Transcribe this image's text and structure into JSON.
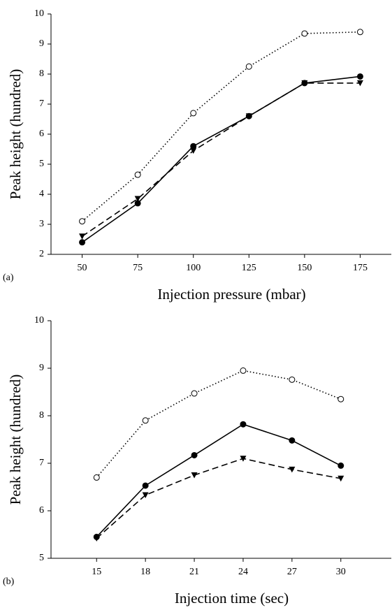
{
  "chart_data": [
    {
      "type": "line",
      "panel_label": "(a)",
      "xlabel": "Injection pressure (mbar)",
      "ylabel": "Peak height (hundred)",
      "x": [
        50,
        75,
        100,
        125,
        150,
        175
      ],
      "xlim": [
        36,
        189
      ],
      "xticks": [
        50,
        75,
        100,
        125,
        150,
        175
      ],
      "ylim": [
        2,
        10
      ],
      "yticks": [
        2,
        3,
        4,
        5,
        6,
        7,
        8,
        9,
        10
      ],
      "series": [
        {
          "color": "#000000",
          "linestyle": "dotted",
          "marker": "open-circle",
          "values": [
            3.1,
            4.65,
            6.7,
            8.25,
            9.35,
            9.4
          ]
        },
        {
          "color": "#000000",
          "linestyle": "solid",
          "marker": "circle",
          "values": [
            2.4,
            3.7,
            5.6,
            6.6,
            7.7,
            7.92
          ]
        },
        {
          "color": "#000000",
          "linestyle": "dashed",
          "marker": "triangle-down",
          "values": [
            2.6,
            3.85,
            5.45,
            6.6,
            7.7,
            7.7
          ]
        }
      ]
    },
    {
      "type": "line",
      "panel_label": "(b)",
      "xlabel": "Injection time (sec)",
      "ylabel": "Peak height (hundred)",
      "x": [
        15,
        18,
        21,
        24,
        27,
        30
      ],
      "xlim": [
        12.2,
        33.1
      ],
      "xticks": [
        15,
        18,
        21,
        24,
        27,
        30
      ],
      "ylim": [
        5,
        10
      ],
      "yticks": [
        5,
        6,
        7,
        8,
        9,
        10
      ],
      "series": [
        {
          "color": "#000000",
          "linestyle": "dotted",
          "marker": "open-circle",
          "values": [
            6.7,
            7.9,
            8.47,
            8.95,
            8.76,
            8.35
          ]
        },
        {
          "color": "#000000",
          "linestyle": "solid",
          "marker": "circle",
          "values": [
            5.45,
            6.53,
            7.17,
            7.82,
            7.48,
            6.95
          ]
        },
        {
          "color": "#000000",
          "linestyle": "dashed",
          "marker": "triangle-down",
          "values": [
            5.42,
            6.33,
            6.75,
            7.1,
            6.87,
            6.68
          ]
        }
      ]
    }
  ]
}
